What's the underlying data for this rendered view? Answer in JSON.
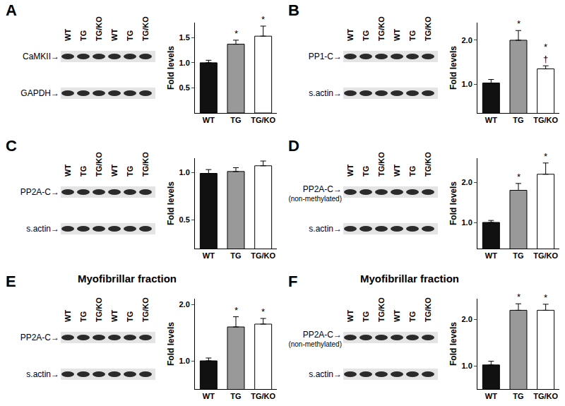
{
  "chart_data": [
    {
      "type": "bar",
      "categories": [
        "WT",
        "TG",
        "TG/KO"
      ],
      "values": [
        1.0,
        1.37,
        1.53
      ],
      "errors": [
        0.05,
        0.08,
        0.2
      ],
      "colors": [
        "#111111",
        "#999999",
        "#ffffff"
      ],
      "ylabel": "Fold levels",
      "ylim": [
        0,
        1.8
      ],
      "yticks": [
        0.5,
        {
          "value": 1,
          "label": "1.0"
        },
        1.5
      ],
      "grid": false,
      "annotations": [
        {
          "category": "TG",
          "lines": [
            "*"
          ]
        },
        {
          "category": "TG/KO",
          "lines": [
            "*"
          ]
        }
      ]
    },
    {
      "type": "bar",
      "categories": [
        "WT",
        "TG",
        "TG/KO"
      ],
      "values": [
        1.03,
        2.0,
        1.35
      ],
      "errors": [
        0.08,
        0.22,
        0.07
      ],
      "colors": [
        "#111111",
        "#999999",
        "#ffffff"
      ],
      "ylabel": "Fold levels",
      "ylim": [
        0.35,
        2.4
      ],
      "yticks": [
        {
          "value": 1,
          "label": "1.0"
        },
        {
          "value": 2,
          "label": "2.0"
        }
      ],
      "grid": false,
      "annotations": [
        {
          "category": "TG",
          "lines": [
            "*"
          ]
        },
        {
          "category": "TG/KO",
          "lines": [
            "*",
            "†"
          ]
        }
      ]
    },
    {
      "type": "bar",
      "categories": [
        "WT",
        "TG",
        "TG/KO"
      ],
      "values": [
        0.99,
        1.01,
        1.07
      ],
      "errors": [
        0.04,
        0.04,
        0.05
      ],
      "colors": [
        "#111111",
        "#999999",
        "#ffffff"
      ],
      "ylabel": "Fold levels",
      "ylim": [
        0.2,
        1.15
      ],
      "yticks": [
        0.5,
        {
          "value": 1,
          "label": "1.0"
        }
      ],
      "grid": false,
      "annotations": []
    },
    {
      "type": "bar",
      "categories": [
        "WT",
        "TG",
        "TG/KO"
      ],
      "values": [
        1.0,
        1.8,
        2.2
      ],
      "errors": [
        0.05,
        0.17,
        0.28
      ],
      "colors": [
        "#111111",
        "#999999",
        "#ffffff"
      ],
      "ylabel": "Fold levels",
      "ylim": [
        0.35,
        2.6
      ],
      "yticks": [
        {
          "value": 1,
          "label": "1.0"
        },
        {
          "value": 2,
          "label": "2.0"
        }
      ],
      "grid": false,
      "annotations": [
        {
          "category": "TG",
          "lines": [
            "*"
          ]
        },
        {
          "category": "TG/KO",
          "lines": [
            "*"
          ]
        }
      ]
    },
    {
      "type": "bar",
      "categories": [
        "WT",
        "TG",
        "TG/KO"
      ],
      "values": [
        1.0,
        1.6,
        1.65
      ],
      "errors": [
        0.05,
        0.18,
        0.1
      ],
      "colors": [
        "#111111",
        "#999999",
        "#ffffff"
      ],
      "ylabel": "Fold levels",
      "ylim": [
        0.5,
        2.1
      ],
      "yticks": [
        {
          "value": 1,
          "label": "1.0"
        },
        {
          "value": 2,
          "label": "2.0"
        }
      ],
      "grid": false,
      "annotations": [
        {
          "category": "TG",
          "lines": [
            "*"
          ]
        },
        {
          "category": "TG/KO",
          "lines": [
            "*"
          ]
        }
      ]
    },
    {
      "type": "bar",
      "categories": [
        "WT",
        "TG",
        "TG/KO"
      ],
      "values": [
        1.02,
        2.2,
        2.2
      ],
      "errors": [
        0.08,
        0.14,
        0.13
      ],
      "colors": [
        "#111111",
        "#999999",
        "#ffffff"
      ],
      "ylabel": "Fold levels",
      "ylim": [
        0.5,
        2.45
      ],
      "yticks": [
        {
          "value": 1,
          "label": "1.0"
        },
        {
          "value": 2,
          "label": "2.0"
        }
      ],
      "grid": false,
      "annotations": [
        {
          "category": "TG",
          "lines": [
            "*"
          ]
        },
        {
          "category": "TG/KO",
          "lines": [
            "*"
          ]
        }
      ]
    }
  ],
  "panels": [
    {
      "letter": "A",
      "lanes": [
        "WT",
        "TG",
        "TG/KO",
        "WT",
        "TG",
        "TG/KO"
      ],
      "rows": [
        {
          "label": "CaMKII→"
        },
        {
          "label": "GAPDH→"
        }
      ]
    },
    {
      "letter": "B",
      "lanes": [
        "WT",
        "TG",
        "TG/KO",
        "WT",
        "TG",
        "TG/KO"
      ],
      "rows": [
        {
          "label": "PP1-C→"
        },
        {
          "label": "s.actin→"
        }
      ]
    },
    {
      "letter": "C",
      "lanes": [
        "WT",
        "TG",
        "TG/KO",
        "WT",
        "TG",
        "TG/KO"
      ],
      "rows": [
        {
          "label": "PP2A-C→"
        },
        {
          "label": "s.actin→"
        }
      ]
    },
    {
      "letter": "D",
      "lanes": [
        "WT",
        "TG",
        "TG/KO",
        "WT",
        "TG",
        "TG/KO"
      ],
      "rows": [
        {
          "label": "PP2A-C→",
          "sublabel": "(non-methylated)"
        },
        {
          "label": "s.actin→"
        }
      ]
    },
    {
      "letter": "E",
      "heading": "Myofibrillar fraction",
      "lanes": [
        "WT",
        "TG",
        "TG/KO",
        "WT",
        "TG",
        "TG/KO"
      ],
      "rows": [
        {
          "label": "PP2A-C→"
        },
        {
          "label": "s.actin→"
        }
      ]
    },
    {
      "letter": "F",
      "heading": "Myofibrillar fraction",
      "lanes": [
        "WT",
        "TG",
        "TG/KO",
        "WT",
        "TG",
        "TG/KO"
      ],
      "rows": [
        {
          "label": "PP2A-C→",
          "sublabel": "(non-methylated)"
        },
        {
          "label": "s.actin→"
        }
      ]
    }
  ]
}
